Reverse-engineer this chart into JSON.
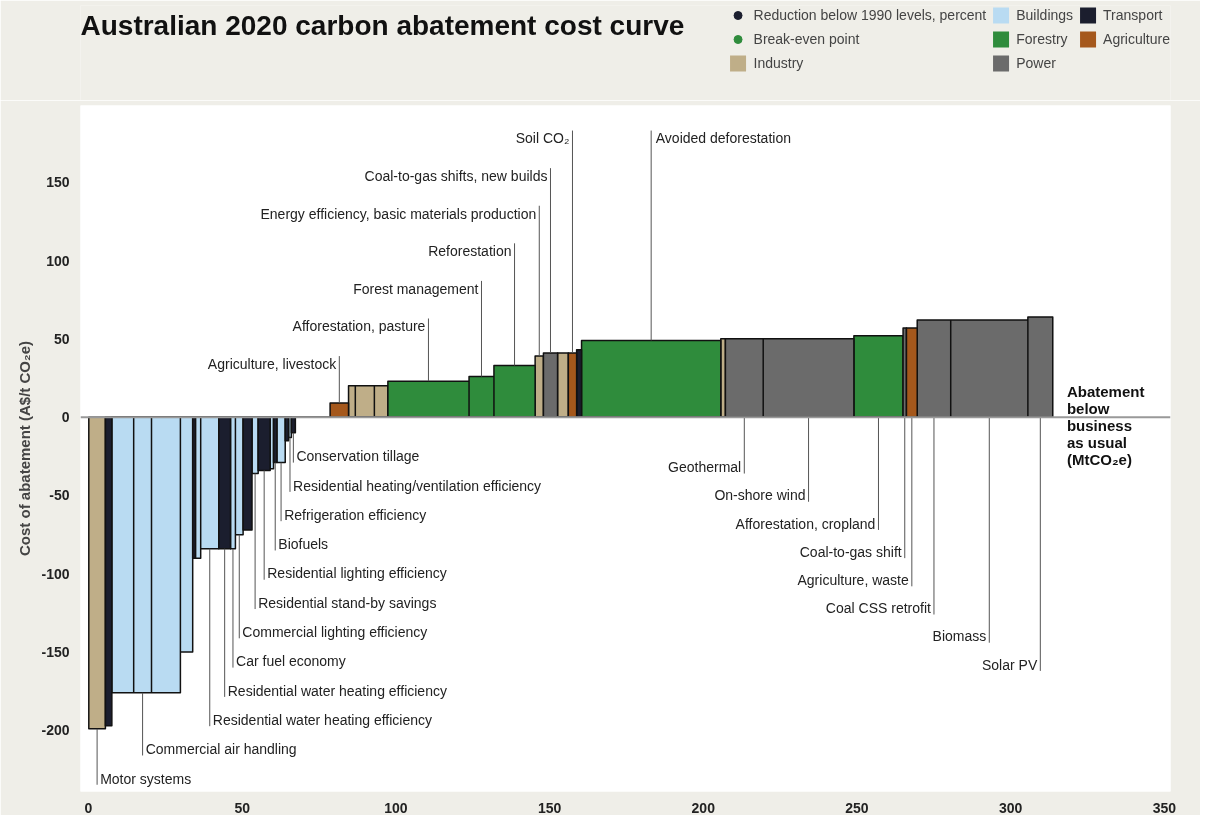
{
  "chart_data": {
    "type": "area",
    "title": "Australian 2020 carbon abatement cost curve",
    "xlabel": "Abatement below business as usual (MtCO₂e)",
    "ylabel": "Cost of abatement (A$/t CO₂e)",
    "xlim": [
      -2.6,
      352
    ],
    "ylim": [
      -239,
      199
    ],
    "xticks": [
      0,
      50,
      100,
      150,
      200,
      250,
      300,
      350
    ],
    "yticks": [
      -200,
      -150,
      -100,
      -50,
      0,
      50,
      100,
      150
    ],
    "grid": false,
    "legend": "top right",
    "ref_lines": [
      {
        "axis": "y",
        "value": 0,
        "color": "#999999"
      }
    ],
    "series": [
      {
        "name": "Reduction below 1990 levels, percent",
        "type": "scatter",
        "marker": "circle",
        "color": "#1b1e2e"
      },
      {
        "name": "Break-even point",
        "type": "scatter",
        "marker": "circle",
        "color": "#2f8c3c"
      },
      {
        "name": "Industry",
        "color": "#bfae88",
        "x": [
          0.1,
          0.1,
          5.5,
          5.5,
          84.6,
          84.6,
          86.8,
          86.8,
          86.8,
          86.8,
          93.0,
          93.0,
          93.0,
          93.0,
          97.4,
          97.4,
          145.3,
          145.3,
          148.0,
          148.0,
          152.6,
          152.6,
          156.1,
          156.1,
          205.7,
          205.7,
          207.2,
          207.2
        ],
        "values": [
          0,
          -199,
          -199,
          0,
          0,
          20,
          20,
          0,
          0,
          20,
          20,
          0,
          0,
          20,
          20,
          0,
          0,
          39,
          39,
          0,
          0,
          41,
          41,
          0,
          0,
          50,
          50,
          0
        ]
      },
      {
        "name": "Buildings",
        "color": "#b9dbf2",
        "x": [
          7.6,
          7.6,
          14.7,
          14.7,
          14.7,
          14.7,
          20.5,
          20.5,
          20.5,
          20.5,
          29.9,
          29.9,
          29.9,
          29.9,
          33.9,
          33.9,
          34.8,
          34.8,
          36.5,
          36.5,
          36.5,
          36.5,
          42.4,
          42.4,
          46.2,
          46.2,
          47.8,
          47.8,
          47.8,
          47.8,
          50.3,
          50.3,
          53.2,
          53.2,
          55.2,
          55.2,
          59.1,
          59.1,
          60.2,
          60.2,
          61.3,
          61.3,
          64.0,
          64.0,
          65.1,
          65.1,
          66.0,
          66.0
        ],
        "values": [
          0,
          -176,
          -176,
          0,
          0,
          -176,
          -176,
          0,
          0,
          -176,
          -176,
          0,
          0,
          -150,
          -150,
          0,
          0,
          -90,
          -90,
          0,
          0,
          -84,
          -84,
          0,
          0,
          -84,
          -84,
          0,
          0,
          -75,
          -75,
          0,
          0,
          -36,
          -36,
          0,
          0,
          -33,
          -33,
          0,
          0,
          -29,
          -29,
          0,
          0,
          -13,
          -13,
          0
        ]
      },
      {
        "name": "Forestry",
        "color": "#2f8c3c",
        "x": [
          97.4,
          97.4,
          123.8,
          123.8,
          123.8,
          123.8,
          131.9,
          131.9,
          131.9,
          131.9,
          145.3,
          145.3,
          160.4,
          160.4,
          205.7,
          205.7,
          249.0,
          249.0,
          265.0,
          265.0
        ],
        "values": [
          0,
          23,
          23,
          0,
          0,
          26,
          26,
          0,
          0,
          33,
          33,
          0,
          0,
          49,
          49,
          0,
          0,
          52,
          52,
          0
        ]
      },
      {
        "name": "Power",
        "color": "#6b6b6b",
        "x": [
          148.0,
          148.0,
          152.6,
          152.6,
          207.2,
          207.2,
          219.5,
          219.5,
          219.5,
          219.5,
          249.0,
          249.0,
          265.0,
          265.0,
          266.1,
          266.1,
          269.6,
          269.6,
          280.5,
          280.5,
          280.5,
          280.5,
          305.6,
          305.6,
          305.6,
          305.6,
          313.7,
          313.7
        ],
        "values": [
          0,
          41,
          41,
          0,
          0,
          50,
          50,
          0,
          0,
          50,
          50,
          0,
          0,
          57,
          57,
          0,
          0,
          62,
          62,
          0,
          0,
          62,
          62,
          0,
          0,
          64,
          64,
          0
        ]
      },
      {
        "name": "Transport",
        "color": "#1b1e2e",
        "x": [
          5.5,
          5.5,
          7.6,
          7.6,
          33.9,
          33.9,
          34.8,
          34.8,
          42.4,
          42.4,
          46.2,
          46.2,
          50.3,
          50.3,
          53.2,
          53.2,
          55.2,
          55.2,
          59.1,
          59.1,
          60.2,
          60.2,
          61.3,
          61.3,
          64.0,
          64.0,
          65.1,
          65.1,
          66.0,
          66.0,
          67.3,
          67.3,
          158.8,
          158.8,
          160.4,
          160.4
        ],
        "values": [
          0,
          -197,
          -197,
          0,
          0,
          -90,
          -90,
          0,
          0,
          -84,
          -84,
          0,
          0,
          -72,
          -72,
          0,
          0,
          -34,
          -34,
          0,
          0,
          -29,
          -29,
          0,
          0,
          -15,
          -15,
          0,
          0,
          -10,
          -10,
          0,
          0,
          43,
          43,
          0
        ]
      },
      {
        "name": "Agriculture",
        "color": "#a5581c",
        "x": [
          78.6,
          78.6,
          84.6,
          84.6,
          156.1,
          156.1,
          158.8,
          158.8,
          266.1,
          266.1,
          269.6,
          269.6
        ],
        "values": [
          0,
          9,
          9,
          0,
          0,
          41,
          41,
          0,
          0,
          57,
          57,
          0
        ]
      }
    ],
    "annotations": [
      {
        "text": "Motor systems",
        "x": 2.8,
        "y": -199
      },
      {
        "text": "Commercial air handling",
        "x": 17.6,
        "y": -176
      },
      {
        "text": "Residential water heating efficiency",
        "x": 44.3,
        "y": -84
      },
      {
        "text": "Residential water heating efficiency",
        "x": 39.45,
        "y": -84
      },
      {
        "text": "Car fuel economy",
        "x": 47.0,
        "y": -84
      },
      {
        "text": "Commercial lighting efficiency",
        "x": 49.05,
        "y": -75
      },
      {
        "text": "Residential stand-by savings",
        "x": 54.2,
        "y": -36
      },
      {
        "text": "Residential lighting efficiency",
        "x": 57.15,
        "y": -34
      },
      {
        "text": "Biofuels",
        "x": 60.75,
        "y": -29
      },
      {
        "text": "Refrigeration efficiency",
        "x": 62.65,
        "y": -29
      },
      {
        "text": "Residential heating/ventilation efficiency",
        "x": 65.55,
        "y": -13
      },
      {
        "text": "Conservation tillage",
        "x": 66.65,
        "y": -10
      },
      {
        "text": "Agriculture, livestock",
        "x": 81.6,
        "y": 9
      },
      {
        "text": "Afforestation, pasture",
        "x": 110.6,
        "y": 23
      },
      {
        "text": "Forest management",
        "x": 127.85,
        "y": 26
      },
      {
        "text": "Reforestation",
        "x": 138.6,
        "y": 33
      },
      {
        "text": "Energy efficiency, basic materials production",
        "x": 146.65,
        "y": 39
      },
      {
        "text": "Coal-to-gas shifts, new builds",
        "x": 150.3,
        "y": 41
      },
      {
        "text": "Soil CO₂",
        "x": 157.45,
        "y": 41
      },
      {
        "text": "Avoided deforestation",
        "x": 183.05,
        "y": 49
      },
      {
        "text": "Geothermal",
        "x": 213.35,
        "y": 0
      },
      {
        "text": "On-shore wind",
        "x": 234.25,
        "y": 0
      },
      {
        "text": "Afforestation, cropland",
        "x": 257,
        "y": 0
      },
      {
        "text": "Coal-to-gas shift",
        "x": 265.55,
        "y": 0
      },
      {
        "text": "Agriculture, waste",
        "x": 267.85,
        "y": 0
      },
      {
        "text": "Coal CSS retrofit",
        "x": 275.05,
        "y": 0
      },
      {
        "text": "Biomass",
        "x": 293.05,
        "y": 0
      },
      {
        "text": "Solar PV",
        "x": 309.65,
        "y": 0
      }
    ]
  }
}
